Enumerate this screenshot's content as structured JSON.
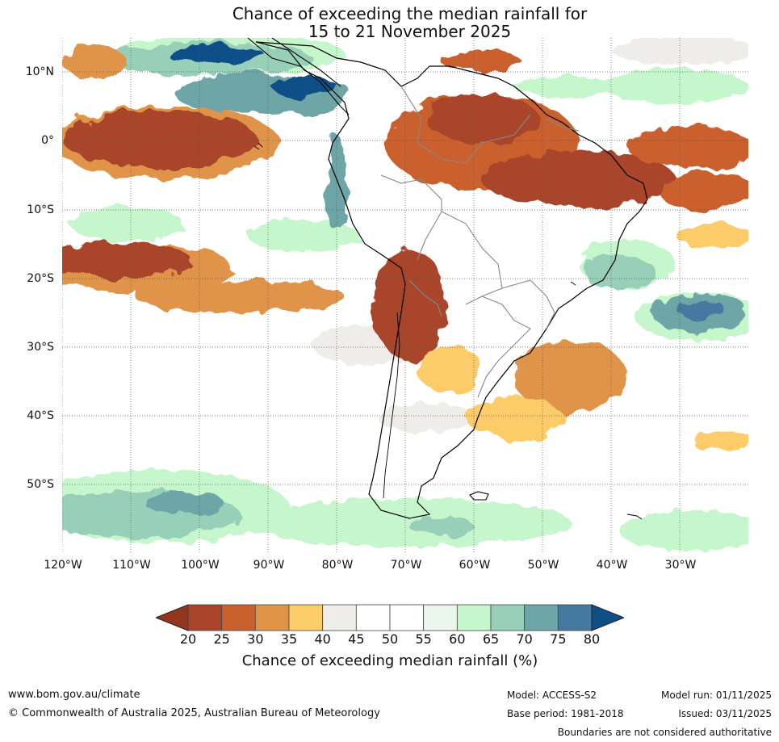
{
  "title_line1": "Chance of exceeding the median rainfall for",
  "title_line2": "15 to 21 November 2025",
  "lat_labels": [
    "10°N",
    "0°",
    "10°S",
    "20°S",
    "30°S",
    "40°S",
    "50°S"
  ],
  "lon_labels": [
    "120°W",
    "110°W",
    "100°W",
    "90°W",
    "80°W",
    "70°W",
    "60°W",
    "50°W",
    "40°W",
    "30°W"
  ],
  "colorbar": {
    "ticks": [
      "20",
      "25",
      "30",
      "35",
      "40",
      "45",
      "50",
      "55",
      "60",
      "65",
      "70",
      "75",
      "80"
    ],
    "colors": [
      "#a8452a",
      "#c9612e",
      "#e0944a",
      "#fdcc6b",
      "#eeedea",
      "#ffffff",
      "#ffffff",
      "#eaf6ec",
      "#c6f6cb",
      "#97cfb9",
      "#6ea5a7",
      "#4679a0"
    ],
    "low_color": "#94361d",
    "high_color": "#0f4f86",
    "label": "Chance of exceeding median rainfall (%)"
  },
  "footer": {
    "website": "www.bom.gov.au/climate",
    "copyright": "© Commonwealth of Australia 2025, Australian Bureau of Meteorology",
    "model": "Model: ACCESS-S2",
    "base_period": "Base period: 1981-2018",
    "model_run": "Model run: 01/11/2025",
    "issued": "Issued: 03/11/2025",
    "disclaimer": "Boundaries are not considered authoritative"
  }
}
